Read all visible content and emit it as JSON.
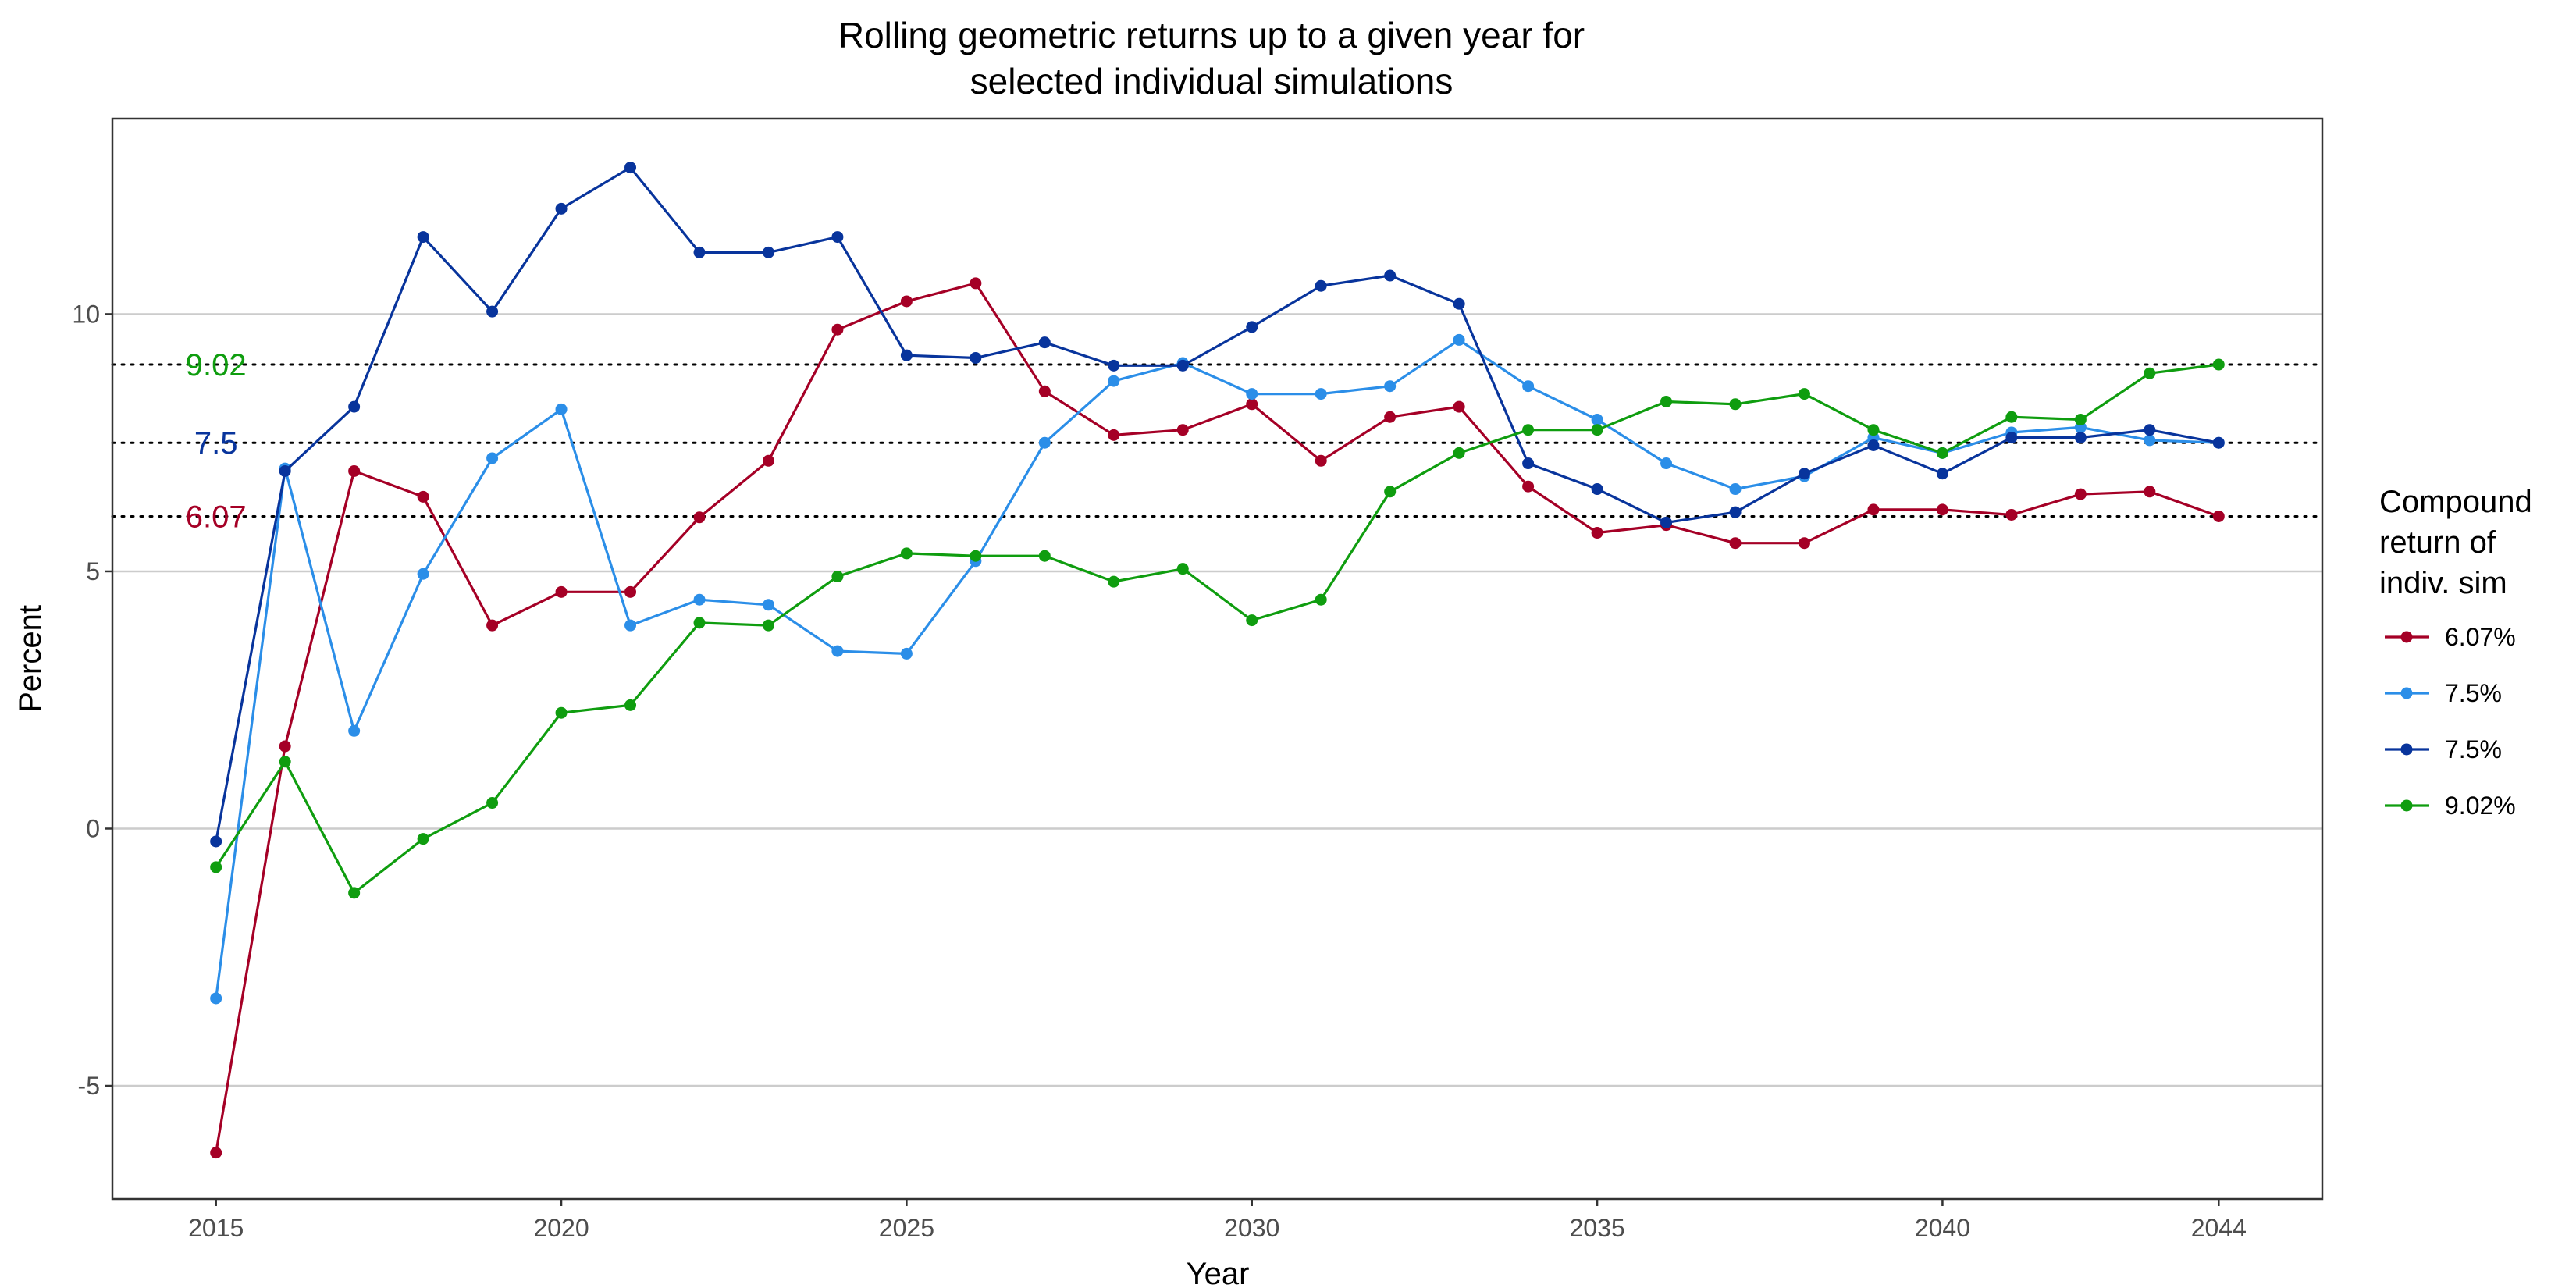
{
  "chart_data": {
    "type": "line",
    "title_lines": [
      "Rolling geometric returns up to a given year for",
      "selected individual simulations"
    ],
    "xlabel": "Year",
    "ylabel": "Percent",
    "xlim": [
      2013.5,
      2045.5
    ],
    "ylim": [
      -7.2,
      13.8
    ],
    "x_ticks": [
      2015,
      2020,
      2025,
      2030,
      2035,
      2040,
      2044
    ],
    "y_ticks": [
      -5,
      0,
      5,
      10
    ],
    "grid": "horizontal major",
    "legend": {
      "title_lines": [
        "Compound",
        "return of",
        "indiv. sim"
      ],
      "placement": "right"
    },
    "x": [
      2015,
      2016,
      2017,
      2018,
      2019,
      2020,
      2021,
      2022,
      2023,
      2024,
      2025,
      2026,
      2027,
      2028,
      2029,
      2030,
      2031,
      2032,
      2033,
      2034,
      2035,
      2036,
      2037,
      2038,
      2039,
      2040,
      2041,
      2042,
      2043,
      2044
    ],
    "series": [
      {
        "name": "6.07%",
        "color": "#a50026",
        "values": [
          -6.3,
          1.6,
          6.95,
          6.45,
          3.95,
          4.6,
          4.6,
          6.05,
          7.15,
          9.7,
          10.25,
          10.6,
          8.5,
          7.65,
          7.75,
          8.25,
          7.15,
          8.0,
          8.2,
          6.65,
          5.75,
          5.9,
          5.55,
          5.55,
          6.2,
          6.2,
          6.1,
          6.5,
          6.55,
          6.07
        ]
      },
      {
        "name": "7.5%",
        "color": "#2b8ee8",
        "values": [
          -3.3,
          7.0,
          1.9,
          4.95,
          7.2,
          8.15,
          3.95,
          4.45,
          4.35,
          3.45,
          3.4,
          5.2,
          7.5,
          8.7,
          9.05,
          8.45,
          8.45,
          8.6,
          9.5,
          8.6,
          7.95,
          7.1,
          6.6,
          6.85,
          7.6,
          7.3,
          7.7,
          7.8,
          7.55,
          7.5
        ]
      },
      {
        "name": "7.5%",
        "color": "#08349c",
        "values": [
          -0.25,
          6.95,
          8.2,
          11.5,
          10.05,
          12.05,
          12.85,
          11.2,
          11.2,
          11.5,
          9.2,
          9.15,
          9.45,
          9.0,
          9.0,
          9.75,
          10.55,
          10.75,
          10.2,
          7.1,
          6.6,
          5.95,
          6.15,
          6.9,
          7.45,
          6.9,
          7.6,
          7.6,
          7.75,
          7.5
        ]
      },
      {
        "name": "9.02%",
        "color": "#0f9d0f",
        "values": [
          -0.75,
          1.3,
          -1.25,
          -0.2,
          0.5,
          2.25,
          2.4,
          4.0,
          3.95,
          4.9,
          5.35,
          5.3,
          5.3,
          4.8,
          5.05,
          4.05,
          4.45,
          6.55,
          7.3,
          7.75,
          7.75,
          8.3,
          8.25,
          8.45,
          7.75,
          7.3,
          8.0,
          7.95,
          8.85,
          9.02
        ]
      }
    ],
    "reference_lines": [
      {
        "value": 9.02,
        "label": "9.02",
        "color": "#0f9d0f"
      },
      {
        "value": 7.5,
        "label": "7.5",
        "color": "#08349c"
      },
      {
        "value": 6.07,
        "label": "6.07",
        "color": "#a50026"
      }
    ]
  }
}
